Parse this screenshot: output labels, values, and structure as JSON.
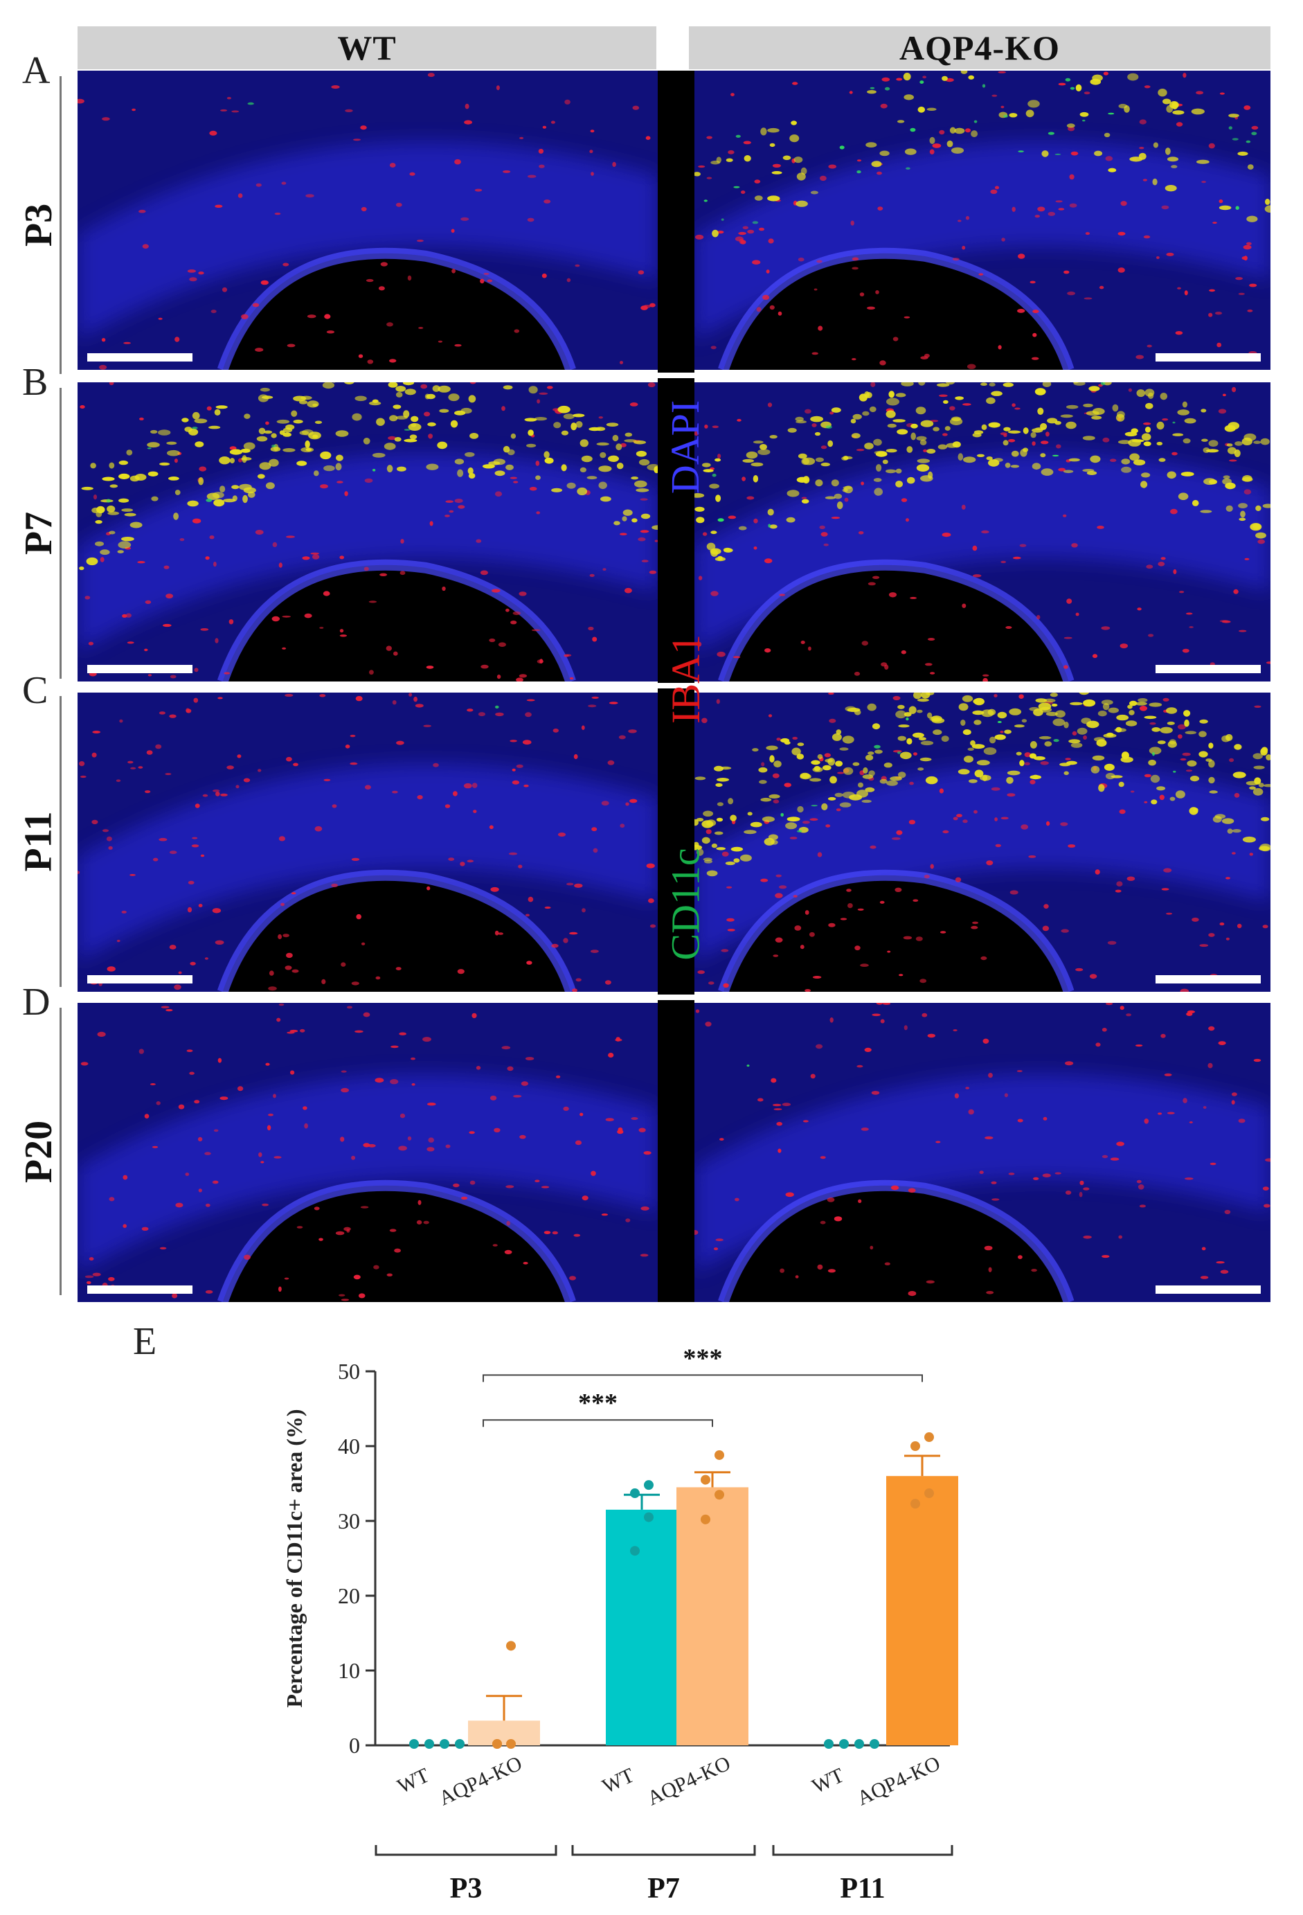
{
  "figure": {
    "col_headers": [
      "WT",
      "AQP4-KO"
    ],
    "panel_letters": [
      "A",
      "B",
      "C",
      "D",
      "E"
    ],
    "row_labels": [
      "P3",
      "P7",
      "P11",
      "P20"
    ],
    "stains": [
      {
        "text": "DAPI",
        "color": "#3b3bff"
      },
      {
        "text": "IBA1",
        "color": "#e01818"
      },
      {
        "text": "CD11c",
        "color": "#18b04a"
      }
    ],
    "micro_intensity": {
      "P3": {
        "WT": {
          "red": 0.35,
          "yellow": 0.0,
          "green": 0.01
        },
        "AQP4-KO": {
          "red": 0.55,
          "yellow": 0.25,
          "green": 0.35
        }
      },
      "P7": {
        "WT": {
          "red": 0.5,
          "yellow": 0.7,
          "green": 0.1
        },
        "AQP4-KO": {
          "red": 0.5,
          "yellow": 0.75,
          "green": 0.1
        }
      },
      "P11": {
        "WT": {
          "red": 0.6,
          "yellow": 0.0,
          "green": 0.01
        },
        "AQP4-KO": {
          "red": 0.6,
          "yellow": 0.85,
          "green": 0.15
        }
      },
      "P20": {
        "WT": {
          "red": 0.55,
          "yellow": 0.0,
          "green": 0.0
        },
        "AQP4-KO": {
          "red": 0.45,
          "yellow": 0.0,
          "green": 0.02
        }
      }
    }
  },
  "chart_data": {
    "type": "bar",
    "ylabel": "Percentage of CD11c+ area (%)",
    "ylim": [
      0,
      50
    ],
    "yticks": [
      0,
      10,
      20,
      30,
      40,
      50
    ],
    "groups": [
      "P3",
      "P7",
      "P11"
    ],
    "bar_labels": [
      "WT",
      "AQP4-KO"
    ],
    "bars": [
      {
        "group": "P3",
        "label": "WT",
        "value": 0,
        "error": 0,
        "color": "#00c8c8",
        "points": [
          0,
          0,
          0,
          0
        ]
      },
      {
        "group": "P3",
        "label": "AQP4-KO",
        "value": 3.3,
        "error": 3.3,
        "color": "#fcd5b0",
        "points": [
          0,
          0,
          0,
          13.3
        ]
      },
      {
        "group": "P7",
        "label": "WT",
        "value": 31.5,
        "error": 2.0,
        "color": "#00c8c8",
        "points": [
          26,
          30.5,
          33.7,
          34.8
        ]
      },
      {
        "group": "P7",
        "label": "AQP4-KO",
        "value": 34.5,
        "error": 2.0,
        "color": "#fdb97b",
        "points": [
          30.2,
          33.5,
          35.5,
          38.8
        ]
      },
      {
        "group": "P11",
        "label": "WT",
        "value": 0,
        "error": 0,
        "color": "#00c8c8",
        "points": [
          0,
          0,
          0,
          0
        ]
      },
      {
        "group": "P11",
        "label": "AQP4-KO",
        "value": 36.0,
        "error": 2.7,
        "color": "#f9962e",
        "points": [
          32.3,
          33.7,
          40.0,
          41.2
        ]
      }
    ],
    "significance": [
      {
        "from": "P3 AQP4-KO",
        "to": "P7 AQP4-KO",
        "label": "***"
      },
      {
        "from": "P3 AQP4-KO",
        "to": "P11 AQP4-KO",
        "label": "***"
      }
    ]
  }
}
